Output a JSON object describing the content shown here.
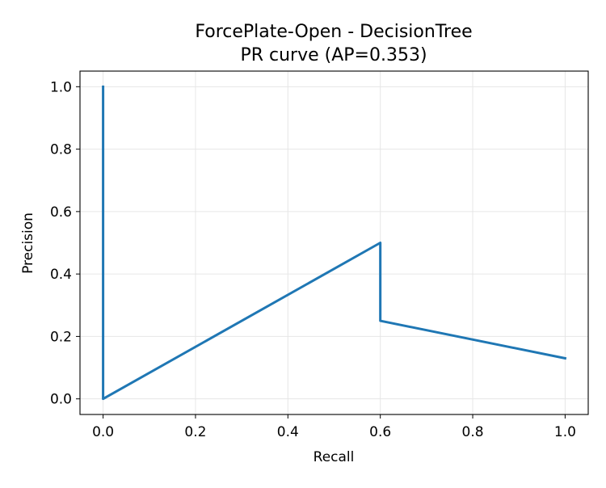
{
  "chart_data": {
    "type": "line",
    "title": "ForcePlate-Open - DecisionTree",
    "subtitle": "PR curve (AP=0.353)",
    "xlabel": "Recall",
    "ylabel": "Precision",
    "xlim": [
      -0.05,
      1.05
    ],
    "ylim": [
      -0.05,
      1.05
    ],
    "xticks": [
      0.0,
      0.2,
      0.4,
      0.6,
      0.8,
      1.0
    ],
    "yticks": [
      0.0,
      0.2,
      0.4,
      0.6,
      0.8,
      1.0
    ],
    "xtick_labels": [
      "0.0",
      "0.2",
      "0.4",
      "0.6",
      "0.8",
      "1.0"
    ],
    "ytick_labels": [
      "0.0",
      "0.2",
      "0.4",
      "0.6",
      "0.8",
      "1.0"
    ],
    "grid": true,
    "series": [
      {
        "color": "#1f77b4",
        "x": [
          0.0,
          0.0,
          0.6,
          0.6,
          1.0
        ],
        "y": [
          1.0,
          0.0,
          0.5,
          0.25,
          0.13
        ]
      }
    ]
  }
}
